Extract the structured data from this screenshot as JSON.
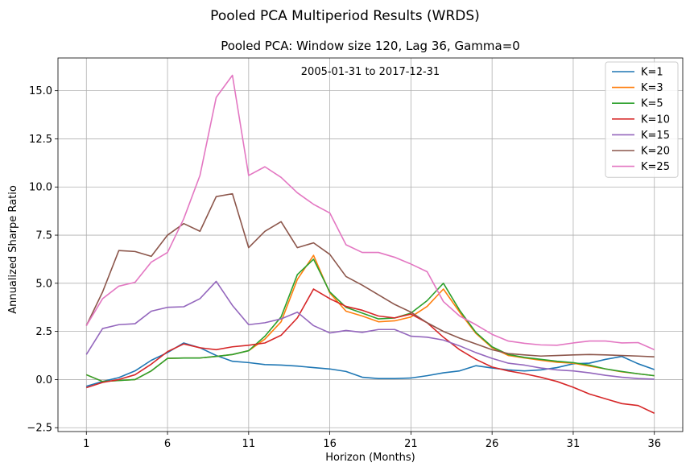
{
  "chart_data": {
    "type": "line",
    "suptitle": "Pooled PCA Multiperiod Results (WRDS)",
    "title": "Pooled PCA: Window size 120, Lag 36, Gamma=0",
    "annotation": "2005-01-31 to 2017-12-31",
    "xlabel": "Horizon (Months)",
    "ylabel": "Annualized Sharpe Ratio",
    "xlim": [
      -0.75,
      37.75
    ],
    "ylim": [
      -2.7,
      16.7
    ],
    "xticks": [
      1,
      6,
      11,
      16,
      21,
      26,
      31,
      36
    ],
    "yticks": [
      -2.5,
      0.0,
      2.5,
      5.0,
      7.5,
      10.0,
      12.5,
      15.0
    ],
    "ytick_labels": [
      "−2.5",
      "0.0",
      "2.5",
      "5.0",
      "7.5",
      "10.0",
      "12.5",
      "15.0"
    ],
    "grid": true,
    "legend_position": "top-right",
    "x": [
      1,
      2,
      3,
      4,
      5,
      6,
      7,
      8,
      9,
      10,
      11,
      12,
      13,
      14,
      15,
      16,
      17,
      18,
      19,
      20,
      21,
      22,
      23,
      24,
      25,
      26,
      27,
      28,
      29,
      30,
      31,
      32,
      33,
      34,
      35,
      36
    ],
    "series": [
      {
        "name": "K=1",
        "color": "#1f77b4",
        "values": [
          -0.35,
          -0.1,
          0.1,
          0.45,
          1.0,
          1.4,
          1.9,
          1.65,
          1.25,
          0.95,
          0.88,
          0.78,
          0.75,
          0.7,
          0.62,
          0.55,
          0.42,
          0.12,
          0.05,
          0.05,
          0.08,
          0.2,
          0.35,
          0.45,
          0.72,
          0.6,
          0.5,
          0.45,
          0.5,
          0.62,
          0.82,
          0.85,
          1.05,
          1.2,
          0.82,
          0.52
        ]
      },
      {
        "name": "K=3",
        "color": "#ff7f0e",
        "values": [
          0.25,
          -0.1,
          -0.05,
          0.0,
          0.45,
          1.1,
          1.12,
          1.12,
          1.2,
          1.3,
          1.5,
          2.1,
          3.0,
          5.2,
          6.45,
          4.5,
          3.55,
          3.3,
          3.0,
          3.05,
          3.25,
          3.8,
          4.7,
          3.5,
          2.4,
          1.65,
          1.25,
          1.12,
          1.0,
          0.9,
          0.85,
          0.7,
          0.55,
          0.4,
          0.3,
          0.2
        ]
      },
      {
        "name": "K=5",
        "color": "#2ca02c",
        "values": [
          0.25,
          -0.1,
          -0.05,
          0.0,
          0.45,
          1.1,
          1.12,
          1.12,
          1.2,
          1.3,
          1.5,
          2.25,
          3.25,
          5.45,
          6.25,
          4.55,
          3.75,
          3.45,
          3.15,
          3.2,
          3.45,
          4.1,
          5.0,
          3.6,
          2.45,
          1.7,
          1.3,
          1.15,
          1.05,
          0.95,
          0.88,
          0.75,
          0.55,
          0.42,
          0.3,
          0.2
        ]
      },
      {
        "name": "K=10",
        "color": "#d62728",
        "values": [
          -0.42,
          -0.15,
          0.0,
          0.25,
          0.8,
          1.45,
          1.85,
          1.65,
          1.55,
          1.7,
          1.78,
          1.9,
          2.3,
          3.2,
          4.7,
          4.2,
          3.8,
          3.6,
          3.3,
          3.2,
          3.4,
          2.95,
          2.2,
          1.55,
          1.05,
          0.65,
          0.45,
          0.3,
          0.12,
          -0.1,
          -0.4,
          -0.75,
          -1.0,
          -1.25,
          -1.35,
          -1.75
        ]
      },
      {
        "name": "K=15",
        "color": "#9467bd",
        "values": [
          1.3,
          2.65,
          2.85,
          2.9,
          3.55,
          3.75,
          3.78,
          4.2,
          5.1,
          3.85,
          2.85,
          2.95,
          3.15,
          3.5,
          2.8,
          2.42,
          2.55,
          2.45,
          2.6,
          2.6,
          2.25,
          2.2,
          2.05,
          1.75,
          1.4,
          1.1,
          0.85,
          0.75,
          0.6,
          0.5,
          0.45,
          0.35,
          0.22,
          0.12,
          0.05,
          0.02
        ]
      },
      {
        "name": "K=20",
        "color": "#8c564b",
        "values": [
          2.8,
          4.55,
          6.7,
          6.65,
          6.4,
          7.5,
          8.1,
          7.7,
          9.5,
          9.65,
          6.85,
          7.7,
          8.2,
          6.85,
          7.1,
          6.5,
          5.35,
          4.9,
          4.4,
          3.9,
          3.5,
          2.95,
          2.5,
          2.15,
          1.85,
          1.55,
          1.35,
          1.28,
          1.22,
          1.25,
          1.28,
          1.3,
          1.28,
          1.25,
          1.22,
          1.18
        ]
      },
      {
        "name": "K=25",
        "color": "#e377c2",
        "values": [
          2.8,
          4.2,
          4.85,
          5.05,
          6.1,
          6.6,
          8.35,
          10.6,
          14.65,
          15.8,
          10.6,
          11.05,
          10.5,
          9.7,
          9.1,
          8.65,
          7.0,
          6.6,
          6.6,
          6.35,
          6.0,
          5.6,
          4.05,
          3.3,
          2.85,
          2.35,
          2.0,
          1.88,
          1.8,
          1.78,
          1.9,
          2.0,
          2.0,
          1.9,
          1.92,
          1.55
        ]
      }
    ]
  }
}
